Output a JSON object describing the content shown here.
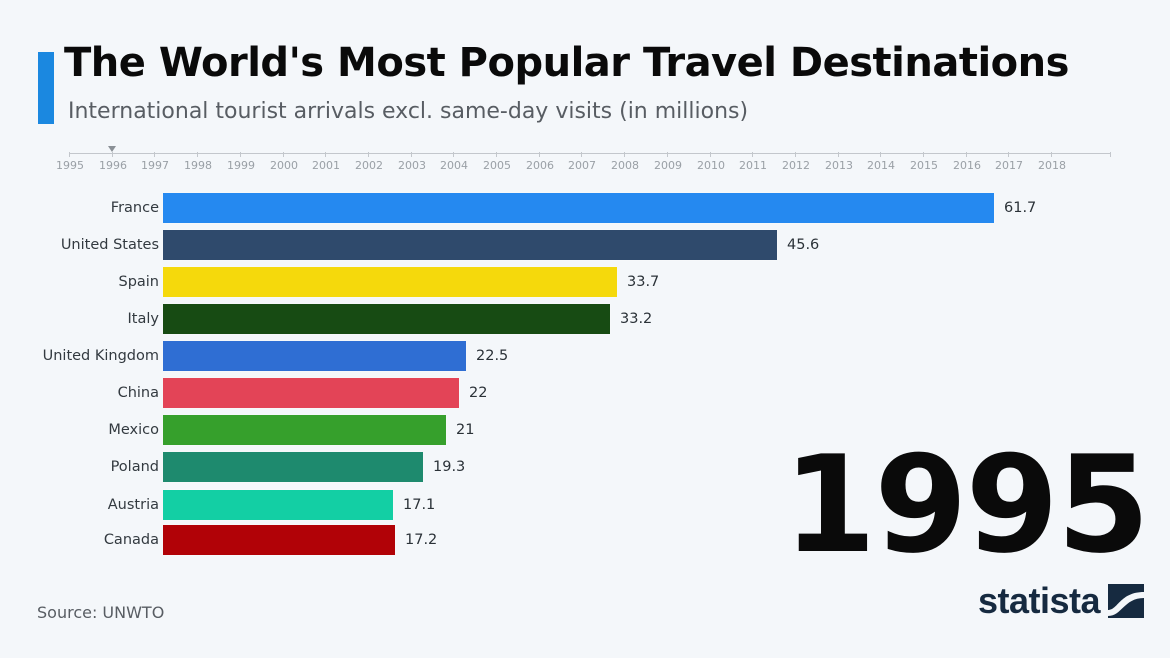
{
  "header": {
    "title": "The World's Most Popular Travel Destinations",
    "subtitle": "International tourist arrivals excl. same-day visits (in millions)",
    "accent_color": "#1b88e0"
  },
  "timeline": {
    "years": [
      "1995",
      "1996",
      "1997",
      "1998",
      "1999",
      "2000",
      "2001",
      "2002",
      "2003",
      "2004",
      "2005",
      "2006",
      "2007",
      "2008",
      "2009",
      "2010",
      "2011",
      "2012",
      "2013",
      "2014",
      "2015",
      "2016",
      "2017",
      "2018"
    ],
    "current_marker_year": "1996"
  },
  "current_year": "1995",
  "brand": {
    "name": "statista",
    "logo_icon": "statista-logo-icon",
    "color": "#162a40"
  },
  "footer": {
    "source": "Source: UNWTO"
  },
  "chart_data": {
    "type": "bar",
    "orientation": "horizontal",
    "title": "The World's Most Popular Travel Destinations",
    "subtitle": "International tourist arrivals excl. same-day visits (in millions)",
    "year": "1995",
    "xlabel": "",
    "ylabel": "",
    "categories": [
      "France",
      "United States",
      "Spain",
      "Italy",
      "United Kingdom",
      "China",
      "Mexico",
      "Poland",
      "Austria",
      "Canada"
    ],
    "values": [
      61.7,
      45.6,
      33.7,
      33.2,
      22.5,
      22,
      21,
      19.3,
      17.1,
      17.2
    ],
    "value_labels": [
      "61.7",
      "45.6",
      "33.7",
      "33.2",
      "22.5",
      "22",
      "21",
      "19.3",
      "17.1",
      "17.2"
    ],
    "colors": [
      "#2589f0",
      "#2f4a6c",
      "#f5d90c",
      "#174b13",
      "#2f6ed3",
      "#e34457",
      "#36a02c",
      "#1e8a6e",
      "#13cfa4",
      "#b10207"
    ],
    "grid": false,
    "legend": null,
    "source": "UNWTO"
  }
}
